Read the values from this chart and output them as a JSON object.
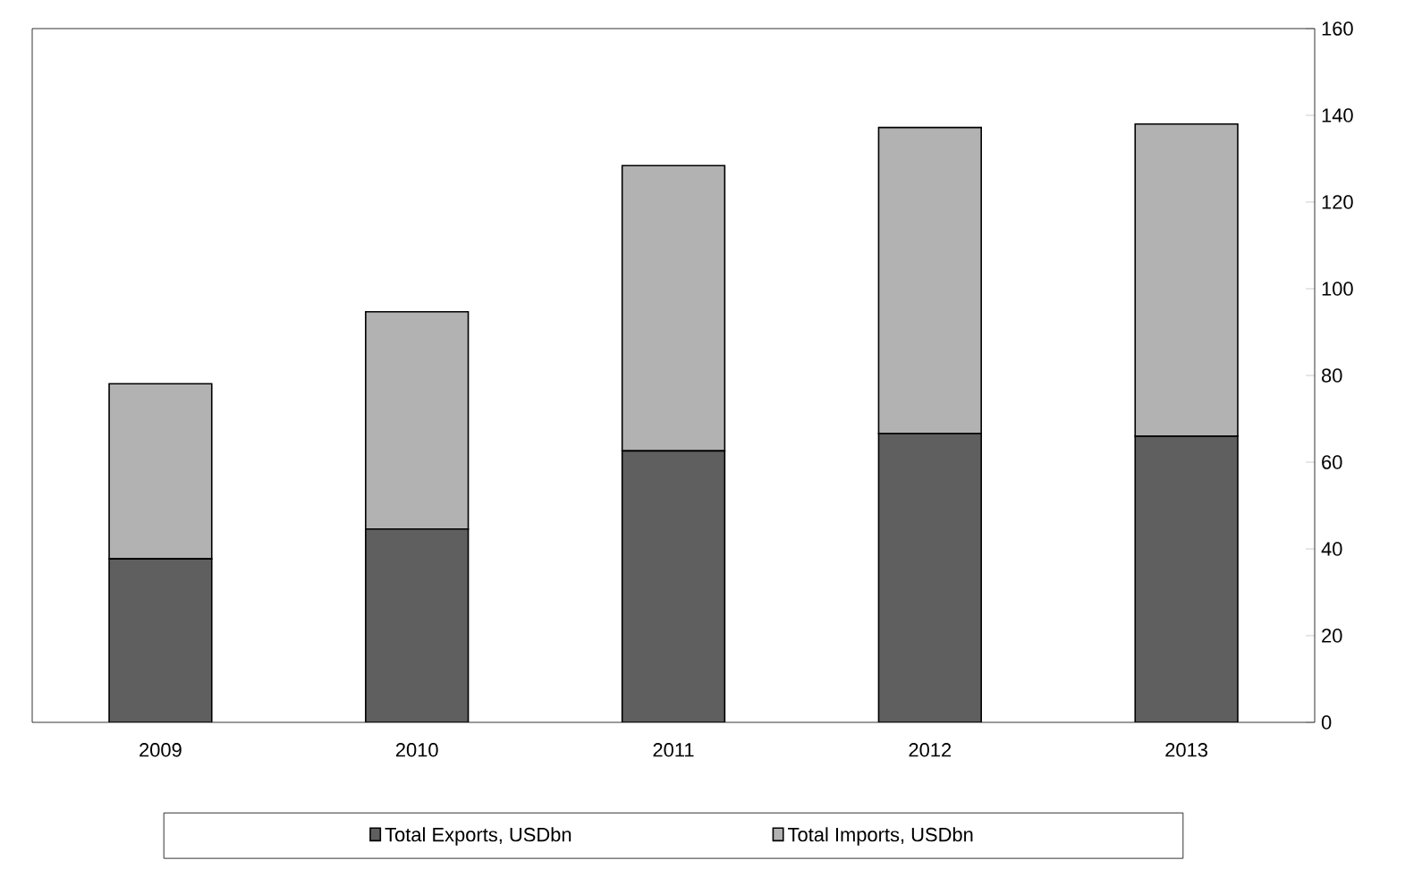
{
  "chart_data": {
    "type": "bar",
    "stacked": true,
    "categories": [
      "2009",
      "2010",
      "2011",
      "2012",
      "2013"
    ],
    "series": [
      {
        "name": "Total Exports, USDbn",
        "color": "#5f5f5f",
        "values": [
          37.7,
          44.6,
          62.6,
          66.6,
          66.0
        ]
      },
      {
        "name": "Total Imports, USDbn",
        "color": "#b2b2b2",
        "values": [
          40.4,
          50.1,
          65.8,
          70.6,
          72.0
        ]
      }
    ],
    "ylim": [
      0,
      160
    ],
    "yticks": [
      0,
      20,
      40,
      60,
      80,
      100,
      120,
      140,
      160
    ],
    "grid": false,
    "legend": "bottom"
  }
}
